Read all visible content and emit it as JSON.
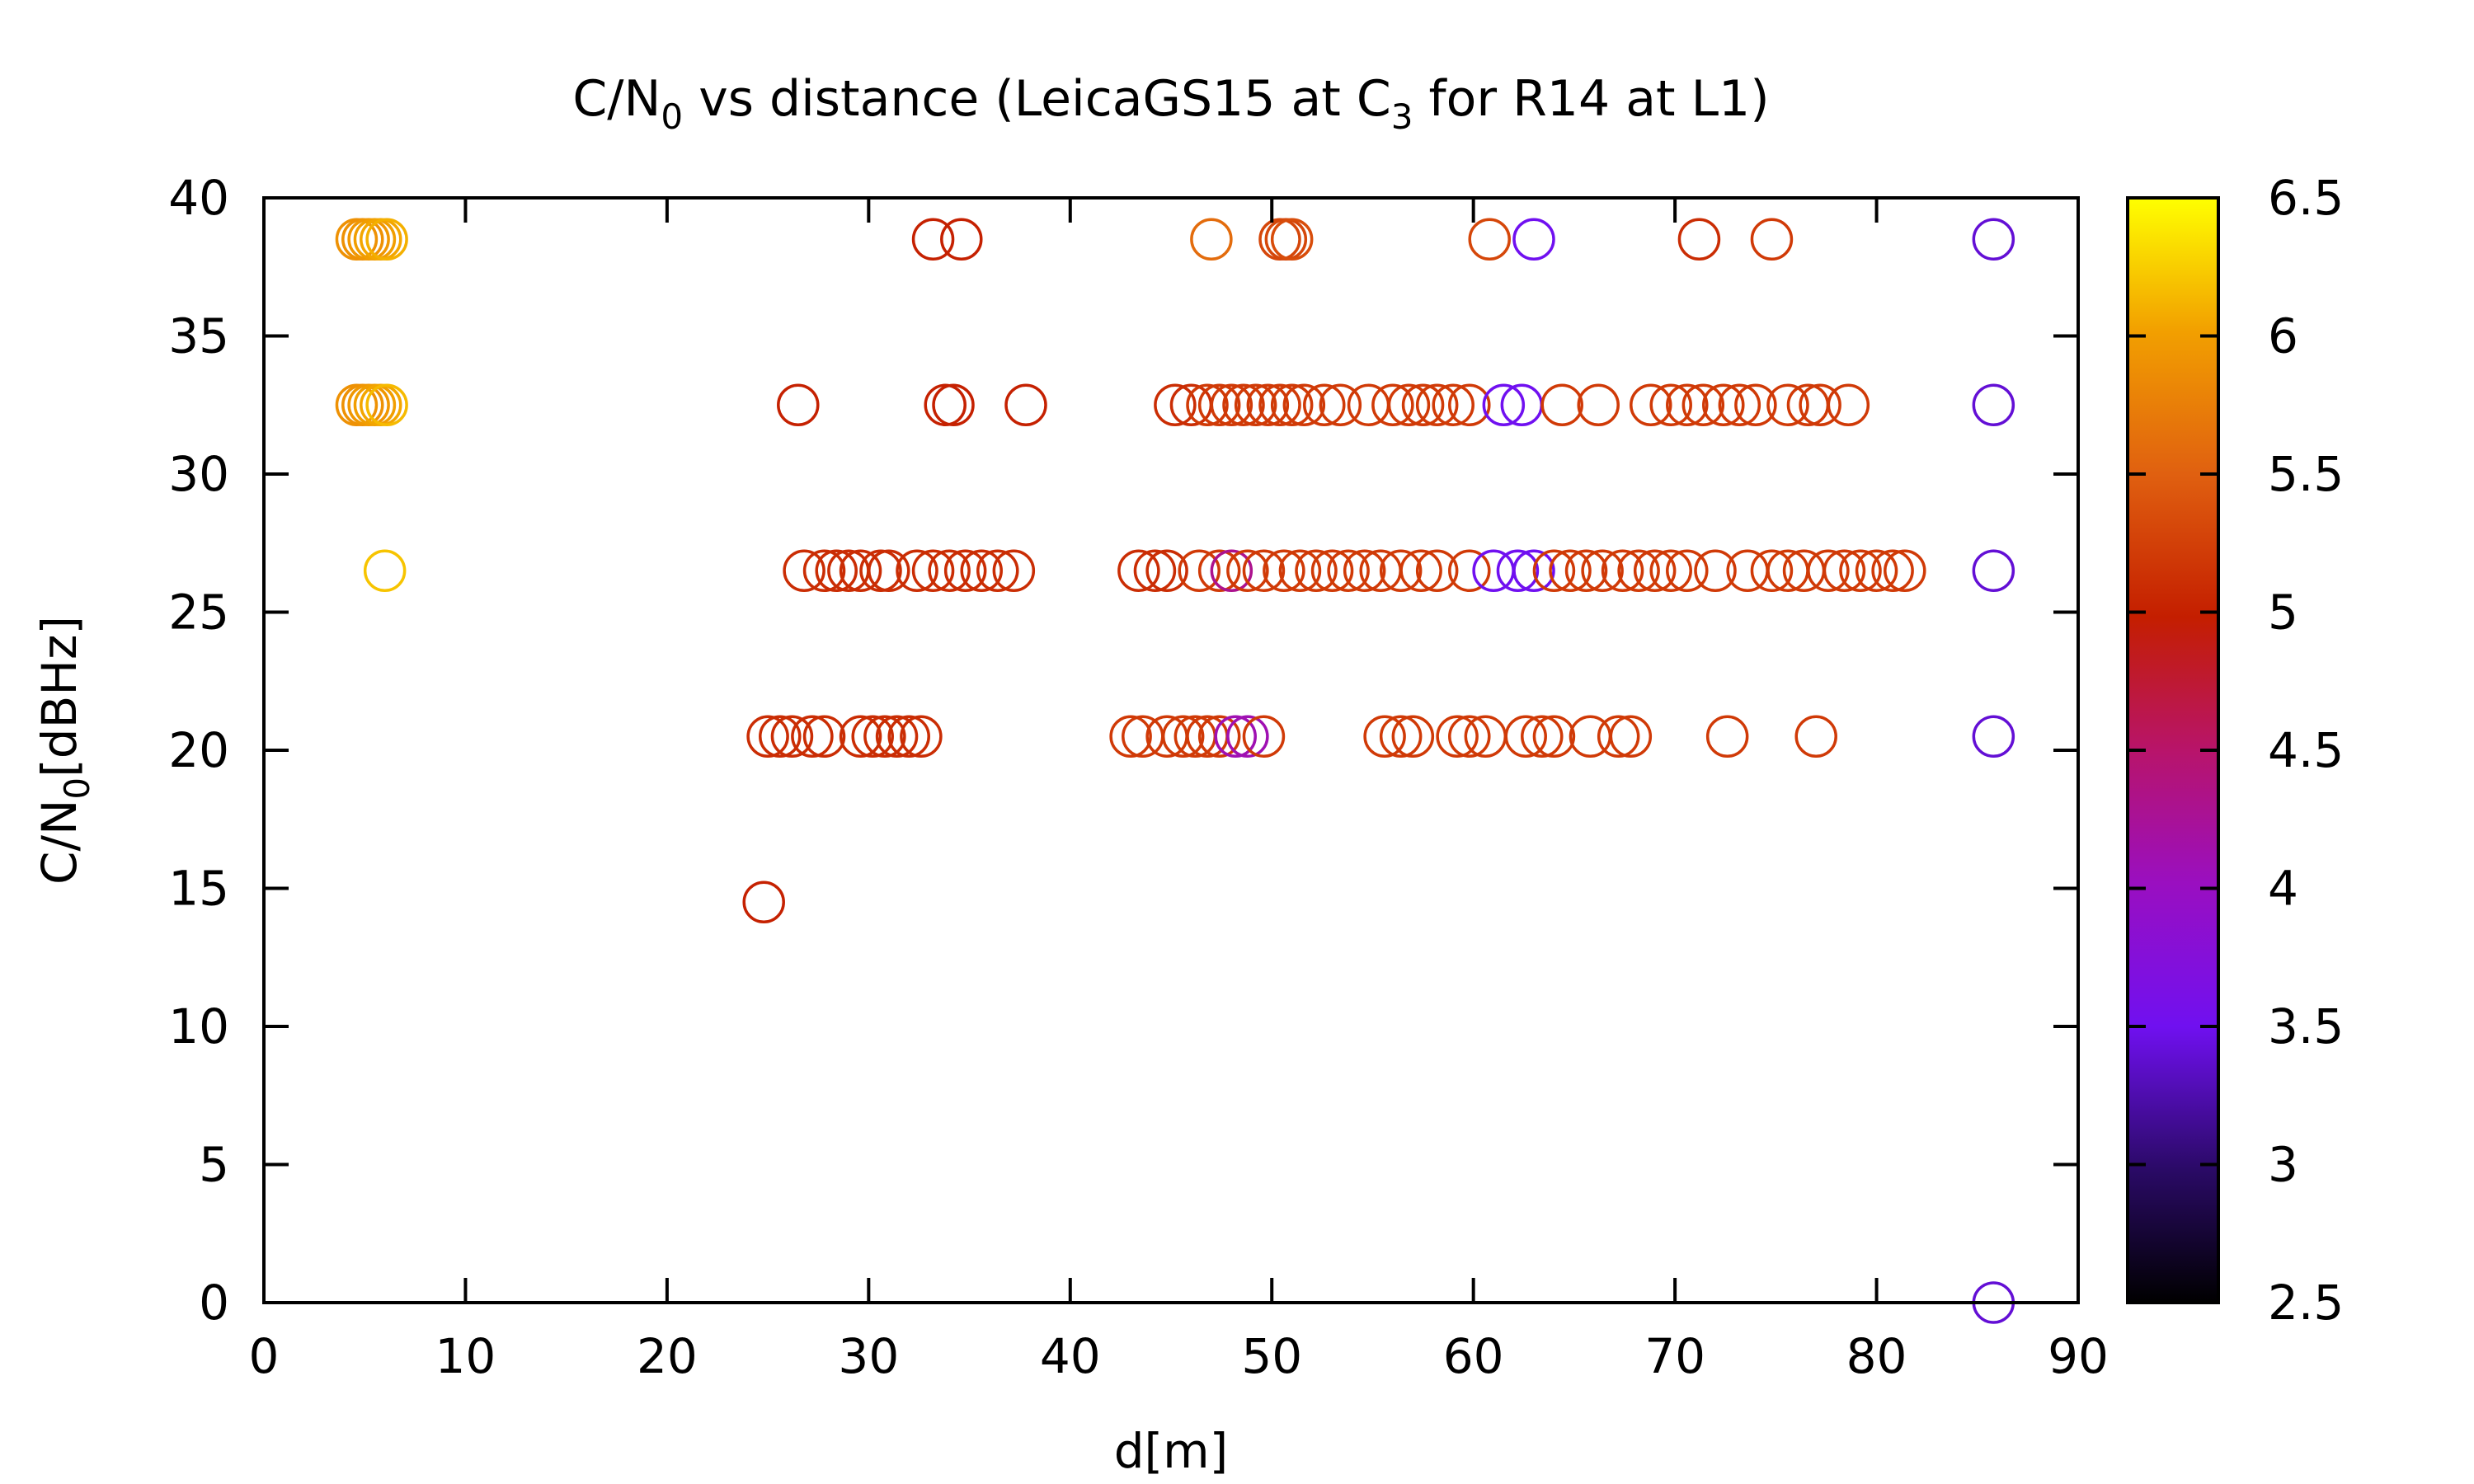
{
  "chart_data": {
    "type": "scatter",
    "title_parts": {
      "a": "C/N",
      "a_sub": "0",
      "b": " vs distance (LeicaGS15 at C",
      "b_sub": "3",
      "c": " for R14 at L1)"
    },
    "xlabel": "d[m]",
    "ylabel_parts": {
      "a": "C/N",
      "a_sub": "0",
      "b": "[dBHz]"
    },
    "xlim": [
      0,
      90
    ],
    "ylim": [
      0,
      40
    ],
    "xticks": [
      0,
      10,
      20,
      30,
      40,
      50,
      60,
      70,
      80,
      90
    ],
    "yticks": [
      0,
      5,
      10,
      15,
      20,
      25,
      30,
      35,
      40
    ],
    "colorbar": {
      "range": [
        2.5,
        6.5
      ],
      "ticks": [
        "2.5",
        "3",
        "3.5",
        "4",
        "4.5",
        "5",
        "5.5",
        "6",
        "6.5"
      ],
      "palette": "gnuplot-pm3d-black-purple-red-orange-yellow"
    },
    "grid": false,
    "marker": "open-circle",
    "points": [
      {
        "x": 4.6,
        "y": 38.5,
        "c": 5.9
      },
      {
        "x": 4.9,
        "y": 38.5,
        "c": 5.9
      },
      {
        "x": 5.2,
        "y": 38.5,
        "c": 5.95
      },
      {
        "x": 5.5,
        "y": 38.5,
        "c": 6.0
      },
      {
        "x": 5.8,
        "y": 38.5,
        "c": 6.05
      },
      {
        "x": 6.1,
        "y": 38.5,
        "c": 6.1
      },
      {
        "x": 4.6,
        "y": 32.5,
        "c": 5.9
      },
      {
        "x": 4.9,
        "y": 32.5,
        "c": 5.9
      },
      {
        "x": 5.2,
        "y": 32.5,
        "c": 5.95
      },
      {
        "x": 5.5,
        "y": 32.5,
        "c": 6.0
      },
      {
        "x": 5.8,
        "y": 32.5,
        "c": 6.05
      },
      {
        "x": 6.1,
        "y": 32.5,
        "c": 6.15
      },
      {
        "x": 6.0,
        "y": 26.5,
        "c": 6.2
      },
      {
        "x": 33.2,
        "y": 38.5,
        "c": 5.0
      },
      {
        "x": 34.6,
        "y": 38.5,
        "c": 5.0
      },
      {
        "x": 47.0,
        "y": 38.5,
        "c": 5.6
      },
      {
        "x": 50.4,
        "y": 38.5,
        "c": 5.3
      },
      {
        "x": 50.7,
        "y": 38.5,
        "c": 5.3
      },
      {
        "x": 51.0,
        "y": 38.5,
        "c": 5.35
      },
      {
        "x": 60.8,
        "y": 38.5,
        "c": 5.3
      },
      {
        "x": 63.0,
        "y": 38.5,
        "c": 3.5
      },
      {
        "x": 71.2,
        "y": 38.5,
        "c": 5.1
      },
      {
        "x": 74.8,
        "y": 38.5,
        "c": 5.2
      },
      {
        "x": 85.8,
        "y": 38.5,
        "c": 3.4
      },
      {
        "x": 26.5,
        "y": 32.5,
        "c": 5.0
      },
      {
        "x": 33.8,
        "y": 32.5,
        "c": 5.0
      },
      {
        "x": 34.2,
        "y": 32.5,
        "c": 5.0
      },
      {
        "x": 37.8,
        "y": 32.5,
        "c": 5.0
      },
      {
        "x": 45.2,
        "y": 32.5,
        "c": 5.1
      },
      {
        "x": 46.0,
        "y": 32.5,
        "c": 5.1
      },
      {
        "x": 46.8,
        "y": 32.5,
        "c": 5.2
      },
      {
        "x": 47.4,
        "y": 32.5,
        "c": 5.2
      },
      {
        "x": 48.0,
        "y": 32.5,
        "c": 5.2
      },
      {
        "x": 48.6,
        "y": 32.5,
        "c": 5.2
      },
      {
        "x": 49.2,
        "y": 32.5,
        "c": 5.2
      },
      {
        "x": 49.8,
        "y": 32.5,
        "c": 5.2
      },
      {
        "x": 50.4,
        "y": 32.5,
        "c": 5.2
      },
      {
        "x": 51.0,
        "y": 32.5,
        "c": 5.2
      },
      {
        "x": 51.6,
        "y": 32.5,
        "c": 5.2
      },
      {
        "x": 52.6,
        "y": 32.5,
        "c": 5.2
      },
      {
        "x": 53.4,
        "y": 32.5,
        "c": 5.2
      },
      {
        "x": 54.8,
        "y": 32.5,
        "c": 5.2
      },
      {
        "x": 56.0,
        "y": 32.5,
        "c": 5.2
      },
      {
        "x": 56.8,
        "y": 32.5,
        "c": 5.2
      },
      {
        "x": 57.5,
        "y": 32.5,
        "c": 5.2
      },
      {
        "x": 58.2,
        "y": 32.5,
        "c": 5.2
      },
      {
        "x": 59.0,
        "y": 32.5,
        "c": 5.2
      },
      {
        "x": 59.8,
        "y": 32.5,
        "c": 5.2
      },
      {
        "x": 61.5,
        "y": 32.5,
        "c": 3.5
      },
      {
        "x": 62.4,
        "y": 32.5,
        "c": 3.5
      },
      {
        "x": 64.4,
        "y": 32.5,
        "c": 5.2
      },
      {
        "x": 66.2,
        "y": 32.5,
        "c": 5.2
      },
      {
        "x": 68.8,
        "y": 32.5,
        "c": 5.2
      },
      {
        "x": 69.8,
        "y": 32.5,
        "c": 5.2
      },
      {
        "x": 70.6,
        "y": 32.5,
        "c": 5.2
      },
      {
        "x": 71.4,
        "y": 32.5,
        "c": 5.2
      },
      {
        "x": 72.4,
        "y": 32.5,
        "c": 5.2
      },
      {
        "x": 73.2,
        "y": 32.5,
        "c": 5.2
      },
      {
        "x": 74.0,
        "y": 32.5,
        "c": 5.2
      },
      {
        "x": 75.6,
        "y": 32.5,
        "c": 5.2
      },
      {
        "x": 76.6,
        "y": 32.5,
        "c": 5.2
      },
      {
        "x": 77.2,
        "y": 32.5,
        "c": 5.2
      },
      {
        "x": 78.6,
        "y": 32.5,
        "c": 5.2
      },
      {
        "x": 85.8,
        "y": 32.5,
        "c": 3.4
      },
      {
        "x": 26.8,
        "y": 26.5,
        "c": 5.1
      },
      {
        "x": 27.8,
        "y": 26.5,
        "c": 5.1
      },
      {
        "x": 28.4,
        "y": 26.5,
        "c": 5.1
      },
      {
        "x": 29.0,
        "y": 26.5,
        "c": 5.1
      },
      {
        "x": 29.6,
        "y": 26.5,
        "c": 5.1
      },
      {
        "x": 30.6,
        "y": 26.5,
        "c": 5.1
      },
      {
        "x": 31.0,
        "y": 26.5,
        "c": 5.1
      },
      {
        "x": 32.4,
        "y": 26.5,
        "c": 5.1
      },
      {
        "x": 33.2,
        "y": 26.5,
        "c": 5.1
      },
      {
        "x": 34.0,
        "y": 26.5,
        "c": 5.1
      },
      {
        "x": 34.8,
        "y": 26.5,
        "c": 5.1
      },
      {
        "x": 35.6,
        "y": 26.5,
        "c": 5.1
      },
      {
        "x": 36.4,
        "y": 26.5,
        "c": 5.1
      },
      {
        "x": 37.2,
        "y": 26.5,
        "c": 5.1
      },
      {
        "x": 43.4,
        "y": 26.5,
        "c": 5.1
      },
      {
        "x": 44.2,
        "y": 26.5,
        "c": 5.1
      },
      {
        "x": 44.8,
        "y": 26.5,
        "c": 5.1
      },
      {
        "x": 46.4,
        "y": 26.5,
        "c": 5.2
      },
      {
        "x": 47.4,
        "y": 26.5,
        "c": 5.2
      },
      {
        "x": 48.0,
        "y": 26.5,
        "c": 4.3
      },
      {
        "x": 48.8,
        "y": 26.5,
        "c": 5.2
      },
      {
        "x": 49.6,
        "y": 26.5,
        "c": 5.2
      },
      {
        "x": 50.6,
        "y": 26.5,
        "c": 5.2
      },
      {
        "x": 51.4,
        "y": 26.5,
        "c": 5.2
      },
      {
        "x": 52.2,
        "y": 26.5,
        "c": 5.2
      },
      {
        "x": 53.0,
        "y": 26.5,
        "c": 5.2
      },
      {
        "x": 53.8,
        "y": 26.5,
        "c": 5.2
      },
      {
        "x": 54.6,
        "y": 26.5,
        "c": 5.2
      },
      {
        "x": 55.4,
        "y": 26.5,
        "c": 5.2
      },
      {
        "x": 56.4,
        "y": 26.5,
        "c": 5.2
      },
      {
        "x": 57.4,
        "y": 26.5,
        "c": 5.2
      },
      {
        "x": 58.2,
        "y": 26.5,
        "c": 5.2
      },
      {
        "x": 59.8,
        "y": 26.5,
        "c": 5.2
      },
      {
        "x": 61.0,
        "y": 26.5,
        "c": 3.5
      },
      {
        "x": 62.2,
        "y": 26.5,
        "c": 3.5
      },
      {
        "x": 63.0,
        "y": 26.5,
        "c": 3.5
      },
      {
        "x": 64.0,
        "y": 26.5,
        "c": 5.2
      },
      {
        "x": 64.8,
        "y": 26.5,
        "c": 5.2
      },
      {
        "x": 65.6,
        "y": 26.5,
        "c": 5.2
      },
      {
        "x": 66.4,
        "y": 26.5,
        "c": 5.2
      },
      {
        "x": 67.4,
        "y": 26.5,
        "c": 5.2
      },
      {
        "x": 68.2,
        "y": 26.5,
        "c": 5.2
      },
      {
        "x": 69.0,
        "y": 26.5,
        "c": 5.2
      },
      {
        "x": 69.8,
        "y": 26.5,
        "c": 5.2
      },
      {
        "x": 70.6,
        "y": 26.5,
        "c": 5.2
      },
      {
        "x": 72.0,
        "y": 26.5,
        "c": 5.2
      },
      {
        "x": 73.6,
        "y": 26.5,
        "c": 5.2
      },
      {
        "x": 74.8,
        "y": 26.5,
        "c": 5.2
      },
      {
        "x": 75.6,
        "y": 26.5,
        "c": 5.2
      },
      {
        "x": 76.4,
        "y": 26.5,
        "c": 5.2
      },
      {
        "x": 77.6,
        "y": 26.5,
        "c": 5.2
      },
      {
        "x": 78.4,
        "y": 26.5,
        "c": 5.2
      },
      {
        "x": 79.2,
        "y": 26.5,
        "c": 5.2
      },
      {
        "x": 80.0,
        "y": 26.5,
        "c": 5.2
      },
      {
        "x": 80.8,
        "y": 26.5,
        "c": 5.2
      },
      {
        "x": 81.4,
        "y": 26.5,
        "c": 5.2
      },
      {
        "x": 85.8,
        "y": 26.5,
        "c": 3.4
      },
      {
        "x": 25.0,
        "y": 20.5,
        "c": 5.1
      },
      {
        "x": 25.6,
        "y": 20.5,
        "c": 5.1
      },
      {
        "x": 26.2,
        "y": 20.5,
        "c": 5.1
      },
      {
        "x": 27.2,
        "y": 20.5,
        "c": 5.1
      },
      {
        "x": 27.8,
        "y": 20.5,
        "c": 5.1
      },
      {
        "x": 29.6,
        "y": 20.5,
        "c": 5.1
      },
      {
        "x": 30.2,
        "y": 20.5,
        "c": 5.1
      },
      {
        "x": 30.8,
        "y": 20.5,
        "c": 5.1
      },
      {
        "x": 31.4,
        "y": 20.5,
        "c": 5.1
      },
      {
        "x": 32.0,
        "y": 20.5,
        "c": 5.1
      },
      {
        "x": 32.6,
        "y": 20.5,
        "c": 5.1
      },
      {
        "x": 43.0,
        "y": 20.5,
        "c": 5.2
      },
      {
        "x": 43.6,
        "y": 20.5,
        "c": 5.2
      },
      {
        "x": 44.8,
        "y": 20.5,
        "c": 5.2
      },
      {
        "x": 45.6,
        "y": 20.5,
        "c": 5.2
      },
      {
        "x": 46.2,
        "y": 20.5,
        "c": 5.2
      },
      {
        "x": 46.8,
        "y": 20.5,
        "c": 5.2
      },
      {
        "x": 47.4,
        "y": 20.5,
        "c": 5.2
      },
      {
        "x": 48.2,
        "y": 20.5,
        "c": 4.1
      },
      {
        "x": 48.8,
        "y": 20.5,
        "c": 4.1
      },
      {
        "x": 49.6,
        "y": 20.5,
        "c": 5.2
      },
      {
        "x": 55.6,
        "y": 20.5,
        "c": 5.2
      },
      {
        "x": 56.4,
        "y": 20.5,
        "c": 5.2
      },
      {
        "x": 57.0,
        "y": 20.5,
        "c": 5.2
      },
      {
        "x": 59.2,
        "y": 20.5,
        "c": 5.2
      },
      {
        "x": 59.8,
        "y": 20.5,
        "c": 5.2
      },
      {
        "x": 60.6,
        "y": 20.5,
        "c": 5.2
      },
      {
        "x": 62.6,
        "y": 20.5,
        "c": 5.2
      },
      {
        "x": 63.4,
        "y": 20.5,
        "c": 5.2
      },
      {
        "x": 64.0,
        "y": 20.5,
        "c": 5.2
      },
      {
        "x": 65.8,
        "y": 20.5,
        "c": 5.2
      },
      {
        "x": 67.2,
        "y": 20.5,
        "c": 5.2
      },
      {
        "x": 67.8,
        "y": 20.5,
        "c": 5.2
      },
      {
        "x": 72.6,
        "y": 20.5,
        "c": 5.2
      },
      {
        "x": 77.0,
        "y": 20.5,
        "c": 5.2
      },
      {
        "x": 85.8,
        "y": 20.5,
        "c": 3.4
      },
      {
        "x": 24.8,
        "y": 14.5,
        "c": 5.0
      },
      {
        "x": 85.8,
        "y": 0.0,
        "c": 3.4
      }
    ]
  }
}
